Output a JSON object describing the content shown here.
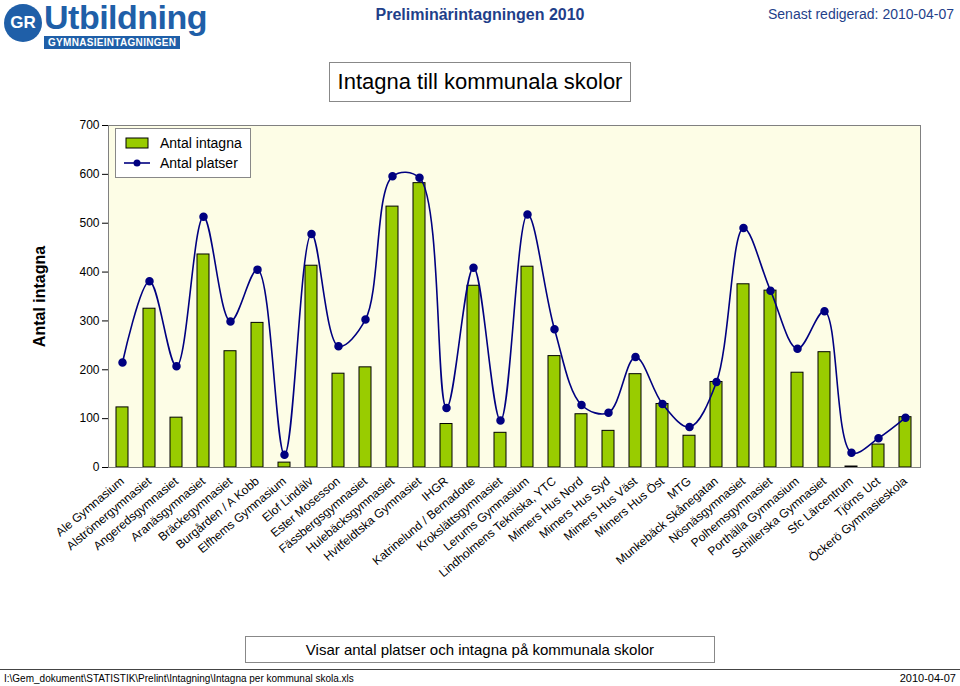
{
  "page": {
    "logo_mark": "GR",
    "logo_title": "Utbildning",
    "logo_subtitle": "GYMNASIEINTAGNINGEN",
    "header": "Preliminärintagningen 2010",
    "edited": "Senast redigerad: 2010-04-07",
    "footer_path": "I:\\Gem_dokument\\STATISTIK\\Prelint\\Intagning\\Intagna per kommunal skola.xls",
    "footer_date": "2010-04-07"
  },
  "chart_data": {
    "type": "bar",
    "title": "Intagna till kommunala skolor",
    "y_label": "Antal intagna",
    "caption": "Visar antal platser och intagna på kommunala skolor",
    "categories": [
      "Ale Gymnasium",
      "Alströmergymnasiet",
      "Angeredsgymnasiet",
      "Aranäsgymnasiet",
      "Bräckegymnasiet",
      "Burgården / A Kobb",
      "Elfhems Gymnasium",
      "Elof Lindälv",
      "Ester Mosesson",
      "Fässbergsgymnasiet",
      "Hulebäcksgymnasiet",
      "Hvitfeldtska Gymnasiet",
      "IHGR",
      "Katrinelund / Bernadotte",
      "Krokslättsgymnasiet",
      "Lerums Gymnasium",
      "Lindholmens Tekniska, YTC",
      "Mimers Hus Nord",
      "Mimers Hus Syd",
      "Mimers Hus Väst",
      "Mimers Hus Öst",
      "MTG",
      "Munkebäck Skånegatan",
      "Nösnäsgymnasiet",
      "Polhemsgymnasiet",
      "Porthälla Gymnasium",
      "Schillerska Gymnasiet",
      "Sfc Lärcentrum",
      "Tjörns Uct",
      "Öckerö Gymnasieskola"
    ],
    "series": [
      {
        "name": "Antal intagna",
        "type": "bar",
        "color": "#99cc00",
        "values": [
          123,
          325,
          102,
          436,
          238,
          296,
          10,
          413,
          192,
          205,
          534,
          582,
          89,
          372,
          71,
          411,
          228,
          109,
          75,
          191,
          130,
          65,
          175,
          375,
          362,
          194,
          236,
          2,
          47,
          103
        ]
      },
      {
        "name": "Antal platser",
        "type": "line",
        "color": "#000080",
        "marker": "circle",
        "line_style": "smooth",
        "values": [
          215,
          381,
          207,
          513,
          299,
          405,
          26,
          478,
          248,
          303,
          596,
          593,
          122,
          409,
          96,
          518,
          283,
          128,
          112,
          226,
          130,
          83,
          175,
          490,
          362,
          243,
          320,
          30,
          60,
          102
        ]
      }
    ],
    "ylim": [
      0,
      700
    ],
    "yticks": [
      0,
      100,
      200,
      300,
      400,
      500,
      600,
      700
    ],
    "grid": false,
    "legend": "top-left",
    "data_labels": false
  }
}
